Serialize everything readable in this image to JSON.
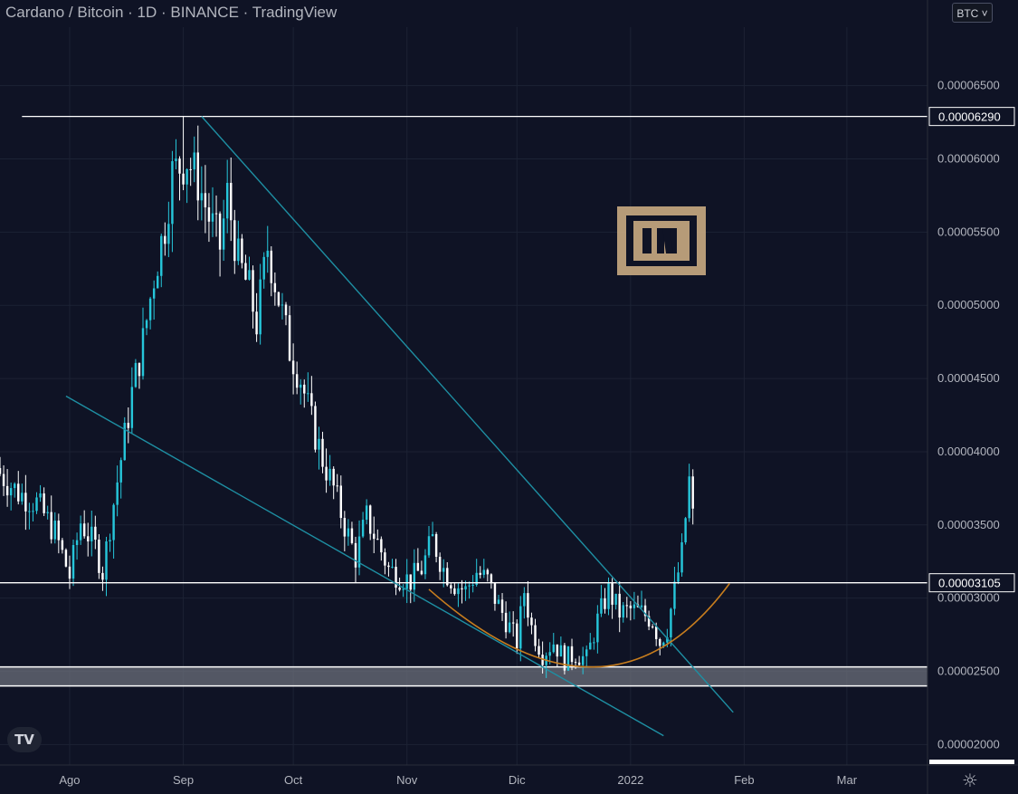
{
  "header": {
    "title": "Cardano / Bitcoin · 1D · BINANCE · TradingView",
    "currency_button": "BTC"
  },
  "colors": {
    "background": "#0f1325",
    "candle_up": "#26c6da",
    "candle_down": "#ffffff",
    "trendline": "#1e8fa3",
    "arc": "#c77d1e",
    "horizontal_line": "#ffffff"
  },
  "chart_data": {
    "type": "candlestick",
    "symbol": "Cardano / Bitcoin",
    "interval": "1D",
    "exchange": "BINANCE",
    "y_tick_labels": [
      "0.00006500",
      "0.00006000",
      "0.00005500",
      "0.00005000",
      "0.00004500",
      "0.00004000",
      "0.00003500",
      "0.00003000",
      "0.00002500",
      "0.00002000"
    ],
    "y_ticks": [
      6.5e-05,
      6e-05,
      5.5e-05,
      5e-05,
      4.5e-05,
      4e-05,
      3.5e-05,
      3e-05,
      2.5e-05,
      2e-05
    ],
    "ylim": [
      1.86e-05,
      6.9e-05
    ],
    "x_tick_labels": [
      "Ago",
      "Sep",
      "Oct",
      "Nov",
      "Dic",
      "2022",
      "Feb",
      "Mar"
    ],
    "x_ticks": [
      "2021-08-01",
      "2021-09-01",
      "2021-10-01",
      "2021-11-01",
      "2021-12-01",
      "2022-01-01",
      "2022-02-01",
      "2022-03-01"
    ],
    "xlim": [
      "2021-07-13",
      "2022-03-23"
    ],
    "price_labels": [
      "0.00006290",
      "0.00003105"
    ],
    "close_path": [
      [
        "2021-07-13",
        3.85e-05
      ],
      [
        "2021-07-18",
        3.72e-05
      ],
      [
        "2021-07-23",
        3.65e-05
      ],
      [
        "2021-07-28",
        3.45e-05
      ],
      [
        "2021-08-01",
        3.15e-05
      ],
      [
        "2021-08-04",
        3.52e-05
      ],
      [
        "2021-08-08",
        3.35e-05
      ],
      [
        "2021-08-10",
        3.18e-05
      ],
      [
        "2021-08-12",
        3.5e-05
      ],
      [
        "2021-08-15",
        3.95e-05
      ],
      [
        "2021-08-18",
        4.4e-05
      ],
      [
        "2021-08-21",
        4.75e-05
      ],
      [
        "2021-08-24",
        5.2e-05
      ],
      [
        "2021-08-27",
        5.55e-05
      ],
      [
        "2021-08-29",
        5.9e-05
      ],
      [
        "2021-09-02",
        6e-05
      ],
      [
        "2021-09-05",
        5.85e-05
      ],
      [
        "2021-09-08",
        5.6e-05
      ],
      [
        "2021-09-11",
        5.4e-05
      ],
      [
        "2021-09-13",
        5.75e-05
      ],
      [
        "2021-09-16",
        5.3e-05
      ],
      [
        "2021-09-19",
        5.1e-05
      ],
      [
        "2021-09-21",
        4.88e-05
      ],
      [
        "2021-09-24",
        5.4e-05
      ],
      [
        "2021-09-27",
        5.05e-05
      ],
      [
        "2021-09-30",
        4.7e-05
      ],
      [
        "2021-10-03",
        4.5e-05
      ],
      [
        "2021-10-06",
        4.2e-05
      ],
      [
        "2021-10-09",
        3.95e-05
      ],
      [
        "2021-10-12",
        3.75e-05
      ],
      [
        "2021-10-15",
        3.5e-05
      ],
      [
        "2021-10-18",
        3.28e-05
      ],
      [
        "2021-10-21",
        3.55e-05
      ],
      [
        "2021-10-24",
        3.38e-05
      ],
      [
        "2021-10-27",
        3.2e-05
      ],
      [
        "2021-10-30",
        3.15e-05
      ],
      [
        "2021-11-02",
        3.12e-05
      ],
      [
        "2021-11-05",
        3.2e-05
      ],
      [
        "2021-11-08",
        3.4e-05
      ],
      [
        "2021-11-11",
        3.2e-05
      ],
      [
        "2021-11-14",
        3.1e-05
      ],
      [
        "2021-11-17",
        3.05e-05
      ],
      [
        "2021-11-20",
        3.18e-05
      ],
      [
        "2021-11-23",
        3.12e-05
      ],
      [
        "2021-11-25",
        3e-05
      ],
      [
        "2021-11-28",
        2.85e-05
      ],
      [
        "2021-12-01",
        2.7e-05
      ],
      [
        "2021-12-03",
        3.05e-05
      ],
      [
        "2021-12-05",
        2.8e-05
      ],
      [
        "2021-12-08",
        2.62e-05
      ],
      [
        "2021-12-11",
        2.7e-05
      ],
      [
        "2021-12-14",
        2.58e-05
      ],
      [
        "2021-12-17",
        2.62e-05
      ],
      [
        "2021-12-20",
        2.58e-05
      ],
      [
        "2021-12-23",
        2.85e-05
      ],
      [
        "2021-12-26",
        3.05e-05
      ],
      [
        "2021-12-29",
        2.9e-05
      ],
      [
        "2022-01-01",
        2.92e-05
      ],
      [
        "2022-01-04",
        2.9e-05
      ],
      [
        "2022-01-07",
        2.85e-05
      ],
      [
        "2022-01-09",
        2.7e-05
      ],
      [
        "2022-01-11",
        2.8e-05
      ],
      [
        "2022-01-13",
        3.05e-05
      ],
      [
        "2022-01-15",
        3.3e-05
      ],
      [
        "2022-01-17",
        3.8e-05
      ],
      [
        "2022-01-18",
        3.55e-05
      ]
    ],
    "extremes": [
      {
        "date": "2021-09-01",
        "high": 6.29e-05
      },
      {
        "date": "2022-01-18",
        "high": 3.88e-05
      }
    ],
    "horizontal_levels": [
      6.29e-05,
      3.105e-05
    ],
    "support_zone": [
      2.4e-05,
      2.53e-05
    ],
    "trendlines": [
      {
        "from": [
          "2021-09-06",
          6.29e-05
        ],
        "to": [
          "2022-01-29",
          2.22e-05
        ]
      },
      {
        "from": [
          "2021-07-31",
          4.38e-05
        ],
        "to": [
          "2022-01-10",
          2.06e-05
        ]
      }
    ],
    "rounding_bottom_arc": {
      "from": [
        "2021-11-07",
        3.06e-05
      ],
      "bottom": [
        "2021-12-22",
        2.53e-05
      ],
      "to": [
        "2022-01-28",
        3.1e-05
      ]
    },
    "grid": true
  }
}
